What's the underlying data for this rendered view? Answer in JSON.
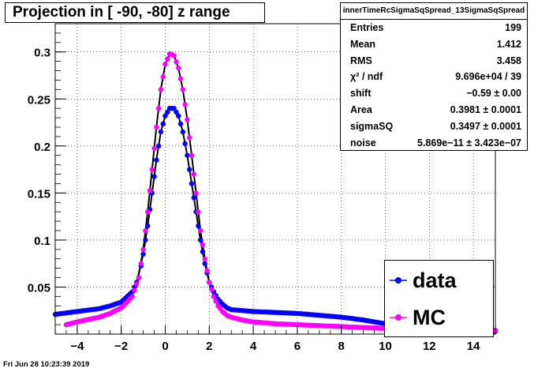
{
  "chart_data": {
    "type": "scatter",
    "title": "Projection in [ -90, -80] z range",
    "xlim": [
      -5,
      15
    ],
    "ylim": [
      0,
      0.33
    ],
    "x_ticks": [
      -4,
      -2,
      0,
      2,
      4,
      6,
      8,
      10,
      12,
      14
    ],
    "y_ticks": [
      0.05,
      0.1,
      0.15,
      0.2,
      0.25,
      0.3
    ],
    "x_tick_labels": [
      "−4",
      "−2",
      "0",
      "2",
      "4",
      "6",
      "8",
      "10",
      "12",
      "14"
    ],
    "y_tick_labels": [
      "0.05",
      "0.1",
      "0.15",
      "0.2",
      "0.25",
      "0.3"
    ],
    "grid": true,
    "legend_position": "bottom-right",
    "series": [
      {
        "name": "data",
        "color": "#0000ff",
        "x": [
          -5.0,
          -4.0,
          -3.0,
          -2.5,
          -2.0,
          -1.5,
          -1.2,
          -1.0,
          -0.8,
          -0.6,
          -0.4,
          -0.2,
          0.0,
          0.2,
          0.4,
          0.6,
          0.8,
          1.0,
          1.2,
          1.4,
          1.6,
          1.8,
          2.0,
          2.2,
          2.4,
          2.6,
          2.8,
          3.0,
          3.5,
          4.0,
          5.0,
          6.0,
          7.0,
          8.0,
          9.0,
          10.0,
          11.0,
          12.0,
          13.0,
          14.0,
          15.0
        ],
        "y": [
          0.021,
          0.024,
          0.027,
          0.03,
          0.034,
          0.045,
          0.06,
          0.085,
          0.115,
          0.15,
          0.185,
          0.215,
          0.232,
          0.24,
          0.24,
          0.232,
          0.215,
          0.19,
          0.16,
          0.13,
          0.1,
          0.075,
          0.055,
          0.045,
          0.037,
          0.032,
          0.028,
          0.026,
          0.025,
          0.024,
          0.023,
          0.022,
          0.02,
          0.018,
          0.015,
          0.011,
          0.008,
          0.006,
          0.005,
          0.004,
          0.003
        ]
      },
      {
        "name": "MC",
        "color": "#ff00ff",
        "x": [
          -4.5,
          -4.0,
          -3.0,
          -2.5,
          -2.0,
          -1.5,
          -1.2,
          -1.0,
          -0.8,
          -0.6,
          -0.4,
          -0.2,
          0.0,
          0.2,
          0.4,
          0.6,
          0.8,
          1.0,
          1.2,
          1.4,
          1.6,
          1.8,
          2.0,
          2.2,
          2.4,
          2.6,
          2.8,
          3.0,
          3.5,
          4.0,
          5.0,
          6.0,
          7.0,
          8.0,
          9.0,
          10.0,
          11.0,
          12.0,
          13.0,
          14.0,
          15.0
        ],
        "y": [
          0.01,
          0.013,
          0.018,
          0.022,
          0.028,
          0.04,
          0.06,
          0.09,
          0.13,
          0.175,
          0.22,
          0.26,
          0.287,
          0.298,
          0.296,
          0.283,
          0.26,
          0.228,
          0.19,
          0.15,
          0.11,
          0.08,
          0.055,
          0.04,
          0.03,
          0.024,
          0.02,
          0.018,
          0.015,
          0.013,
          0.011,
          0.01,
          0.009,
          0.008,
          0.007,
          0.006,
          0.005,
          0.005,
          0.004,
          0.004,
          0.004
        ]
      }
    ],
    "fits": [
      {
        "color": "#000000",
        "x": [
          -1.3,
          -1.0,
          -0.8,
          -0.6,
          -0.4,
          -0.2,
          0.0,
          0.2,
          0.4,
          0.6,
          0.8,
          1.0,
          1.2,
          1.4,
          1.6,
          1.8,
          2.0,
          2.2,
          2.4,
          2.6
        ],
        "y": [
          0.055,
          0.085,
          0.115,
          0.15,
          0.185,
          0.215,
          0.232,
          0.24,
          0.24,
          0.232,
          0.215,
          0.19,
          0.16,
          0.13,
          0.1,
          0.075,
          0.055,
          0.045,
          0.037,
          0.03
        ]
      },
      {
        "color": "#000000",
        "x": [
          -1.3,
          -1.0,
          -0.8,
          -0.6,
          -0.4,
          -0.2,
          0.0,
          0.2,
          0.4,
          0.6,
          0.8,
          1.0,
          1.2,
          1.4,
          1.6,
          1.8,
          2.0,
          2.2,
          2.4,
          2.6
        ],
        "y": [
          0.05,
          0.09,
          0.13,
          0.175,
          0.22,
          0.26,
          0.287,
          0.298,
          0.296,
          0.283,
          0.26,
          0.228,
          0.19,
          0.15,
          0.11,
          0.08,
          0.055,
          0.04,
          0.03,
          0.024
        ]
      }
    ]
  },
  "stats": {
    "title": "innerTimeRcSigmaSqSpread_13SigmaSqSpread",
    "rows": [
      {
        "key": "Entries",
        "value": "199"
      },
      {
        "key": "Mean",
        "value": "1.412"
      },
      {
        "key": "RMS",
        "value": "3.458"
      },
      {
        "key": "χ² / ndf",
        "value": "9.696e+04 / 39"
      },
      {
        "key": "shift",
        "value": "−0.59 ± 0.00"
      },
      {
        "key": "Area",
        "value": "0.3981 ± 0.0001"
      },
      {
        "key": "sigmaSQ",
        "value": "0.3497 ± 0.0001"
      },
      {
        "key": "noise",
        "value": "5.869e−11 ± 3.423e−07"
      }
    ]
  },
  "legend": [
    {
      "label": "data",
      "color": "#0000ff"
    },
    {
      "label": "MC",
      "color": "#ff00ff"
    }
  ],
  "timestamp": "Fri Jun 28 10:23:39 2019"
}
